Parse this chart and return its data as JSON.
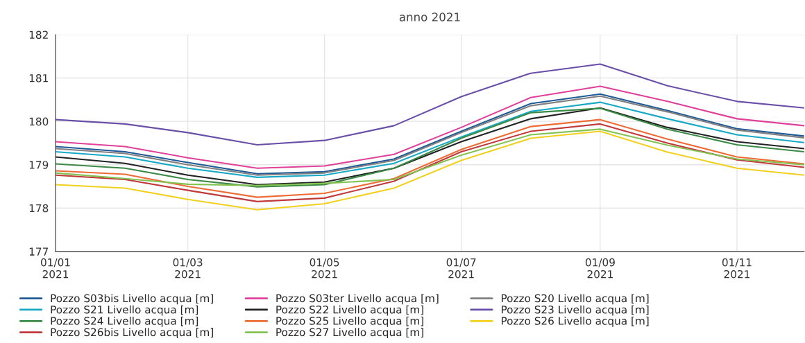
{
  "chart_data": {
    "type": "line",
    "title": "anno 2021",
    "x": [
      "2021-01-01",
      "2021-02-01",
      "2021-03-01",
      "2021-04-01",
      "2021-05-01",
      "2021-06-01",
      "2021-07-01",
      "2021-08-01",
      "2021-09-01",
      "2021-10-01",
      "2021-11-01",
      "2021-12-01"
    ],
    "xlim": [
      "2021-01-01",
      "2021-12-01"
    ],
    "xticks": [
      {
        "value": "2021-01-01",
        "label": "01/01\n2021"
      },
      {
        "value": "2021-03-01",
        "label": "01/03\n2021"
      },
      {
        "value": "2021-05-01",
        "label": "01/05\n2021"
      },
      {
        "value": "2021-07-01",
        "label": "01/07\n2021"
      },
      {
        "value": "2021-09-01",
        "label": "01/09\n2021"
      },
      {
        "value": "2021-11-01",
        "label": "01/11\n2021"
      }
    ],
    "ylim": [
      177,
      182
    ],
    "yticks": [
      177,
      178,
      179,
      180,
      181,
      182
    ],
    "grid": true,
    "legend": "bottom",
    "marker": "none",
    "line_style": "solid",
    "series": [
      {
        "name": "Pozzo S03bis Livello acqua [m]",
        "color": "#1f5a96",
        "values": [
          179.42,
          179.3,
          179.05,
          178.79,
          178.84,
          179.13,
          179.77,
          180.41,
          180.63,
          180.25,
          179.83,
          179.66
        ]
      },
      {
        "name": "Pozzo S03ter Livello acqua [m]",
        "color": "#e0409a",
        "values": [
          179.53,
          179.42,
          179.16,
          178.92,
          178.97,
          179.24,
          179.86,
          180.55,
          180.81,
          180.46,
          180.06,
          179.9
        ]
      },
      {
        "name": "Pozzo S20 Livello acqua [m]",
        "color": "#808080",
        "values": [
          179.37,
          179.26,
          179.0,
          178.76,
          178.81,
          179.1,
          179.74,
          180.36,
          180.58,
          180.22,
          179.8,
          179.62
        ]
      },
      {
        "name": "Pozzo S21 Livello acqua [m]",
        "color": "#17a9c6",
        "values": [
          179.3,
          179.18,
          178.92,
          178.71,
          178.76,
          179.03,
          179.64,
          180.23,
          180.44,
          180.06,
          179.69,
          179.51
        ]
      },
      {
        "name": "Pozzo S22 Livello acqua [m]",
        "color": "#222222",
        "values": [
          179.18,
          179.03,
          178.76,
          178.54,
          178.6,
          178.92,
          179.53,
          180.06,
          180.31,
          179.86,
          179.53,
          179.37
        ]
      },
      {
        "name": "Pozzo S23 Livello acqua [m]",
        "color": "#6a4fa8",
        "values": [
          180.04,
          179.94,
          179.74,
          179.46,
          179.56,
          179.9,
          180.57,
          181.11,
          181.32,
          180.82,
          180.46,
          180.31
        ]
      },
      {
        "name": "Pozzo S24 Livello acqua [m]",
        "color": "#3a8a45",
        "values": [
          179.02,
          178.92,
          178.66,
          178.49,
          178.54,
          178.92,
          179.61,
          180.2,
          180.3,
          179.82,
          179.46,
          179.3
        ]
      },
      {
        "name": "Pozzo S25 Livello acqua [m]",
        "color": "#ee6b35",
        "values": [
          178.86,
          178.78,
          178.5,
          178.25,
          178.34,
          178.68,
          179.35,
          179.88,
          180.04,
          179.59,
          179.18,
          179.02
        ]
      },
      {
        "name": "Pozzo S26 Livello acqua [m]",
        "color": "#f2d01f",
        "values": [
          178.54,
          178.46,
          178.2,
          177.96,
          178.1,
          178.46,
          179.1,
          179.61,
          179.77,
          179.29,
          178.92,
          178.76
        ]
      },
      {
        "name": "Pozzo S26bis Livello acqua [m]",
        "color": "#c0393b",
        "values": [
          178.76,
          178.66,
          178.41,
          178.15,
          178.23,
          178.62,
          179.3,
          179.77,
          179.94,
          179.5,
          179.11,
          178.94
        ]
      },
      {
        "name": "Pozzo S27 Livello acqua [m]",
        "color": "#82c251",
        "values": [
          178.81,
          178.68,
          178.55,
          178.52,
          178.57,
          178.66,
          179.22,
          179.69,
          179.82,
          179.45,
          179.13,
          179.0
        ]
      }
    ]
  }
}
